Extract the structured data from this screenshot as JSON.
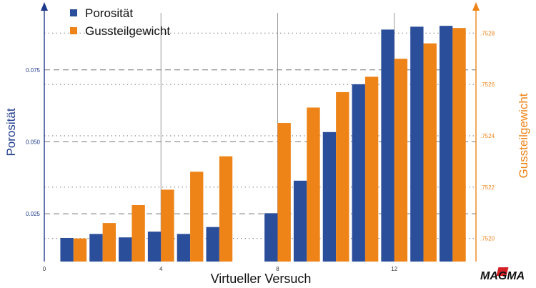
{
  "chart_data": {
    "type": "bar",
    "xlabel": "Virtueller Versuch",
    "x_ticks": [
      "0",
      "4",
      "8",
      "12"
    ],
    "x": [
      1,
      2,
      3,
      4,
      5,
      6,
      7,
      8,
      9,
      10,
      11,
      12,
      13,
      14
    ],
    "xlim": [
      0,
      14.8
    ],
    "grid": true,
    "legend_position": "top-left",
    "series": [
      {
        "name": "Porosität",
        "axis": "left",
        "color": "#2b4e9b",
        "values": [
          0.0166,
          0.018,
          0.0168,
          0.0188,
          0.018,
          0.0204,
          null,
          0.0252,
          0.0365,
          0.0534,
          0.07,
          0.089,
          0.09,
          0.0903
        ]
      },
      {
        "name": "Gussteilgewicht",
        "axis": "right",
        "color": "#ee8418",
        "values": [
          0.752,
          0.75206,
          0.75213,
          0.75219,
          0.75226,
          0.75232,
          null,
          0.75245,
          0.75251,
          0.75257,
          0.75263,
          0.7527,
          0.75276,
          0.75282
        ]
      }
    ],
    "y_left": {
      "label": "Porosität",
      "ticks": [
        "0.025",
        "0.050",
        "0.075"
      ],
      "ylim": [
        0.0084,
        0.0958
      ],
      "color": "#1e3a8a"
    },
    "y_right": {
      "label": "Gussteilgewicht",
      "ticks": [
        ".7520",
        ".7522",
        ".7524",
        ".7526",
        ".7528"
      ],
      "ylim": [
        0.75191,
        0.75289
      ],
      "color": "#ee8418"
    }
  },
  "logo": {
    "text": "MAGMA"
  }
}
